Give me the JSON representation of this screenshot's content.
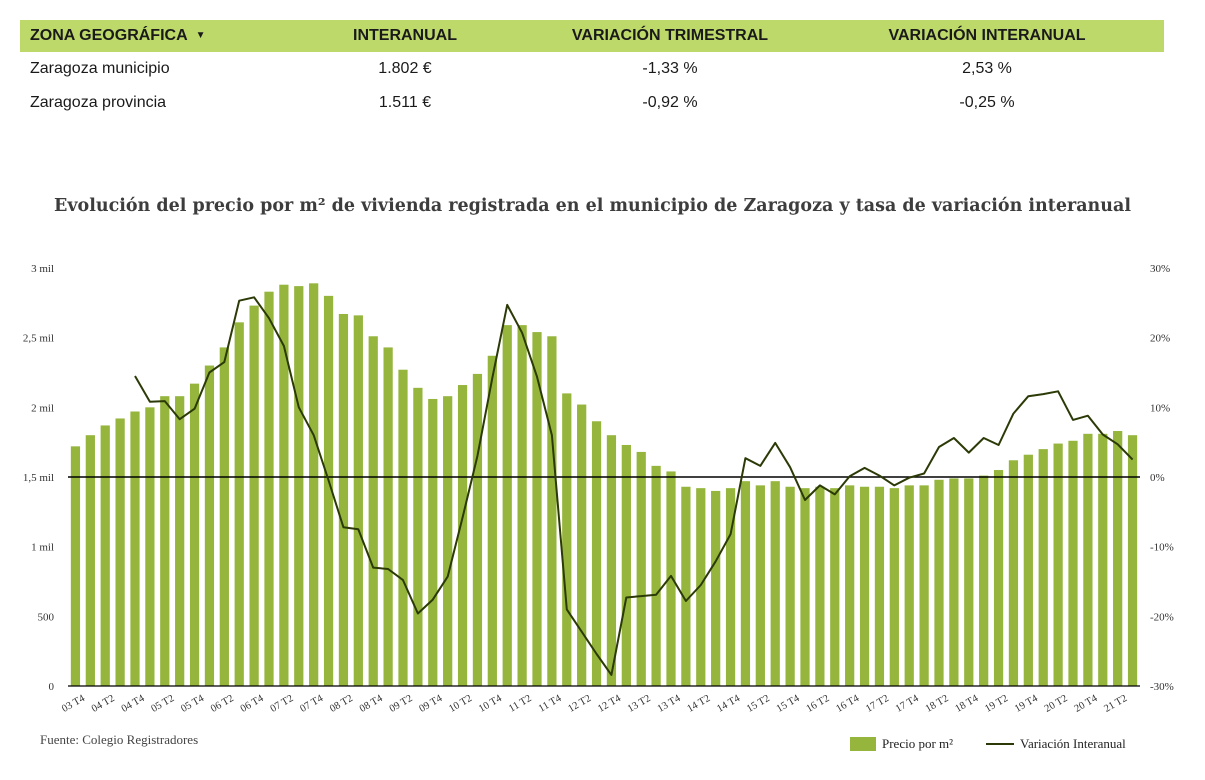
{
  "table": {
    "headers": [
      "ZONA GEOGRÁFICA",
      "INTERANUAL",
      "VARIACIÓN TRIMESTRAL",
      "VARIACIÓN INTERANUAL"
    ],
    "rows": [
      [
        "Zaragoza municipio",
        "1.802 €",
        "-1,33 %",
        "2,53 %"
      ],
      [
        "Zaragoza provincia",
        "1.511 €",
        "-0,92 %",
        "-0,25 %"
      ]
    ]
  },
  "colors": {
    "header_bg": "#bcd96a",
    "bar": "#95b53d",
    "line": "#2b3a06",
    "zero": "#000000"
  },
  "icons": {
    "sort": "caret-down-icon"
  },
  "source": "Fuente: Colegio Registradores",
  "chart_data": {
    "type": "bar",
    "title": "Evolución del precio por m² de vivienda registrada en el municipio de Zaragoza y tasa de variación interanual",
    "y_left": {
      "ticks": [
        "3 mil",
        "2,5 mil",
        "2 mil",
        "1,5 mil",
        "1 mil",
        "500",
        "0"
      ],
      "range": [
        0,
        3000
      ]
    },
    "y_right": {
      "ticks": [
        "30%",
        "20%",
        "10%",
        "0%",
        "-10%",
        "-20%",
        "-30%"
      ],
      "range": [
        -30,
        30
      ]
    },
    "x_tick_labels": [
      "03 T4",
      "04 T2",
      "04 T4",
      "05 T2",
      "05 T4",
      "06 T2",
      "06 T4",
      "07 T2",
      "07 T4",
      "08 T2",
      "08 T4",
      "09 T2",
      "09 T4",
      "10 T2",
      "10 T4",
      "11 T2",
      "11 T4",
      "12 T2",
      "12 T4",
      "13 T2",
      "13 T4",
      "14 T2",
      "14 T4",
      "15 T2",
      "15 T4",
      "16 T2",
      "16 T4",
      "17 T2",
      "17 T4",
      "18 T2",
      "18 T4",
      "19 T2",
      "19 T4",
      "20 T2",
      "20 T4",
      "21 T2"
    ],
    "series": [
      {
        "name": "Precio por m²",
        "type": "bar",
        "values": [
          1720,
          1800,
          1870,
          1920,
          1970,
          2000,
          2080,
          2080,
          2170,
          2300,
          2430,
          2610,
          2730,
          2830,
          2880,
          2870,
          2890,
          2800,
          2670,
          2660,
          2510,
          2430,
          2270,
          2140,
          2060,
          2080,
          2160,
          2240,
          2370,
          2590,
          2590,
          2540,
          2510,
          2100,
          2020,
          1900,
          1800,
          1730,
          1680,
          1580,
          1540,
          1430,
          1420,
          1400,
          1420,
          1470,
          1440,
          1470,
          1430,
          1420,
          1430,
          1420,
          1440,
          1430,
          1430,
          1420,
          1440,
          1440,
          1480,
          1490,
          1490,
          1510,
          1550,
          1620,
          1660,
          1700,
          1740,
          1760,
          1810,
          1810,
          1830,
          1800
        ]
      },
      {
        "name": "Variación Interanual",
        "type": "line",
        "values": [
          null,
          null,
          null,
          null,
          14.5,
          10.8,
          10.9,
          8.3,
          9.8,
          15,
          16.5,
          25.3,
          25.8,
          22.8,
          18.8,
          10,
          6,
          -0.5,
          -7.2,
          -7.5,
          -13,
          -13.2,
          -14.8,
          -19.6,
          -17.6,
          -14.3,
          -5.8,
          3,
          14.2,
          24.7,
          20.7,
          14.4,
          6,
          -19,
          -22.2,
          -25.4,
          -28.4,
          -17.3,
          -17.1,
          -16.9,
          -14.2,
          -17.8,
          -15.5,
          -12.1,
          -8.2,
          2.7,
          1.6,
          4.9,
          1.4,
          -3.3,
          -1.2,
          -2.5,
          0.1,
          1.3,
          0.2,
          -1.2,
          -0.1,
          0.5,
          4.3,
          5.6,
          3.5,
          5.6,
          4.6,
          9.1,
          11.6,
          11.9,
          12.3,
          8.2,
          8.8,
          6.1,
          4.7,
          2.5
        ]
      }
    ],
    "legend_position": "bottom-right"
  }
}
